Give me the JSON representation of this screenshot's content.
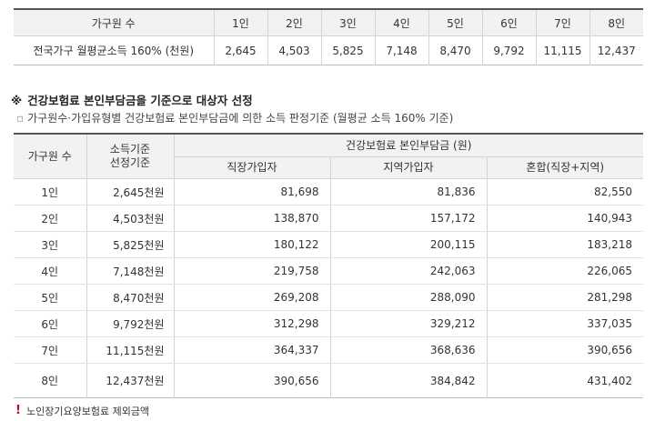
{
  "income_table": {
    "header": [
      "가구원 수",
      "1인",
      "2인",
      "3인",
      "4인",
      "5인",
      "6인",
      "7인",
      "8인"
    ],
    "row_label": "전국가구 월평균소득 160% (천원)",
    "values": [
      "2,645",
      "4,503",
      "5,825",
      "7,148",
      "8,470",
      "9,792",
      "11,115",
      "12,437"
    ]
  },
  "section": {
    "mark": "※",
    "title": "건강보험료 본인부담금을 기준으로 대상자 선정",
    "bullet": "▫",
    "subtitle": "가구원수·가입유형별 건강보험료 본인부담금에 의한 소득 판정기준 (월평균 소득 160% 기준)"
  },
  "premium_table": {
    "col_household": "가구원 수",
    "col_income_line1": "소득기준",
    "col_income_line2": "선정기준",
    "col_premium_group": "건강보험료 본인부담금 (원)",
    "sub_headers": [
      "직장가입자",
      "지역가입자",
      "혼합(직장+지역)"
    ],
    "rows": [
      {
        "size": "1인",
        "income": "2,645천원",
        "workplace": "81,698",
        "regional": "81,836",
        "mixed": "82,550"
      },
      {
        "size": "2인",
        "income": "4,503천원",
        "workplace": "138,870",
        "regional": "157,172",
        "mixed": "140,943"
      },
      {
        "size": "3인",
        "income": "5,825천원",
        "workplace": "180,122",
        "regional": "200,115",
        "mixed": "183,218"
      },
      {
        "size": "4인",
        "income": "7,148천원",
        "workplace": "219,758",
        "regional": "242,063",
        "mixed": "226,065"
      },
      {
        "size": "5인",
        "income": "8,470천원",
        "workplace": "269,208",
        "regional": "288,090",
        "mixed": "281,298"
      },
      {
        "size": "6인",
        "income": "9,792천원",
        "workplace": "312,298",
        "regional": "329,212",
        "mixed": "337,035"
      },
      {
        "size": "7인",
        "income": "11,115천원",
        "workplace": "364,337",
        "regional": "368,636",
        "mixed": "390,656"
      },
      {
        "size": "8인",
        "income": "12,437천원",
        "workplace": "390,656",
        "regional": "384,842",
        "mixed": "431,402"
      }
    ]
  },
  "footnote": {
    "icon": "exclamation-icon",
    "text": "노인장기요양보험료 제외금액"
  },
  "colors": {
    "header_bg": "#f2f2f2",
    "top_border": "#555555",
    "grid_line": "#d4d4d4",
    "alert_red": "#d0021b"
  }
}
